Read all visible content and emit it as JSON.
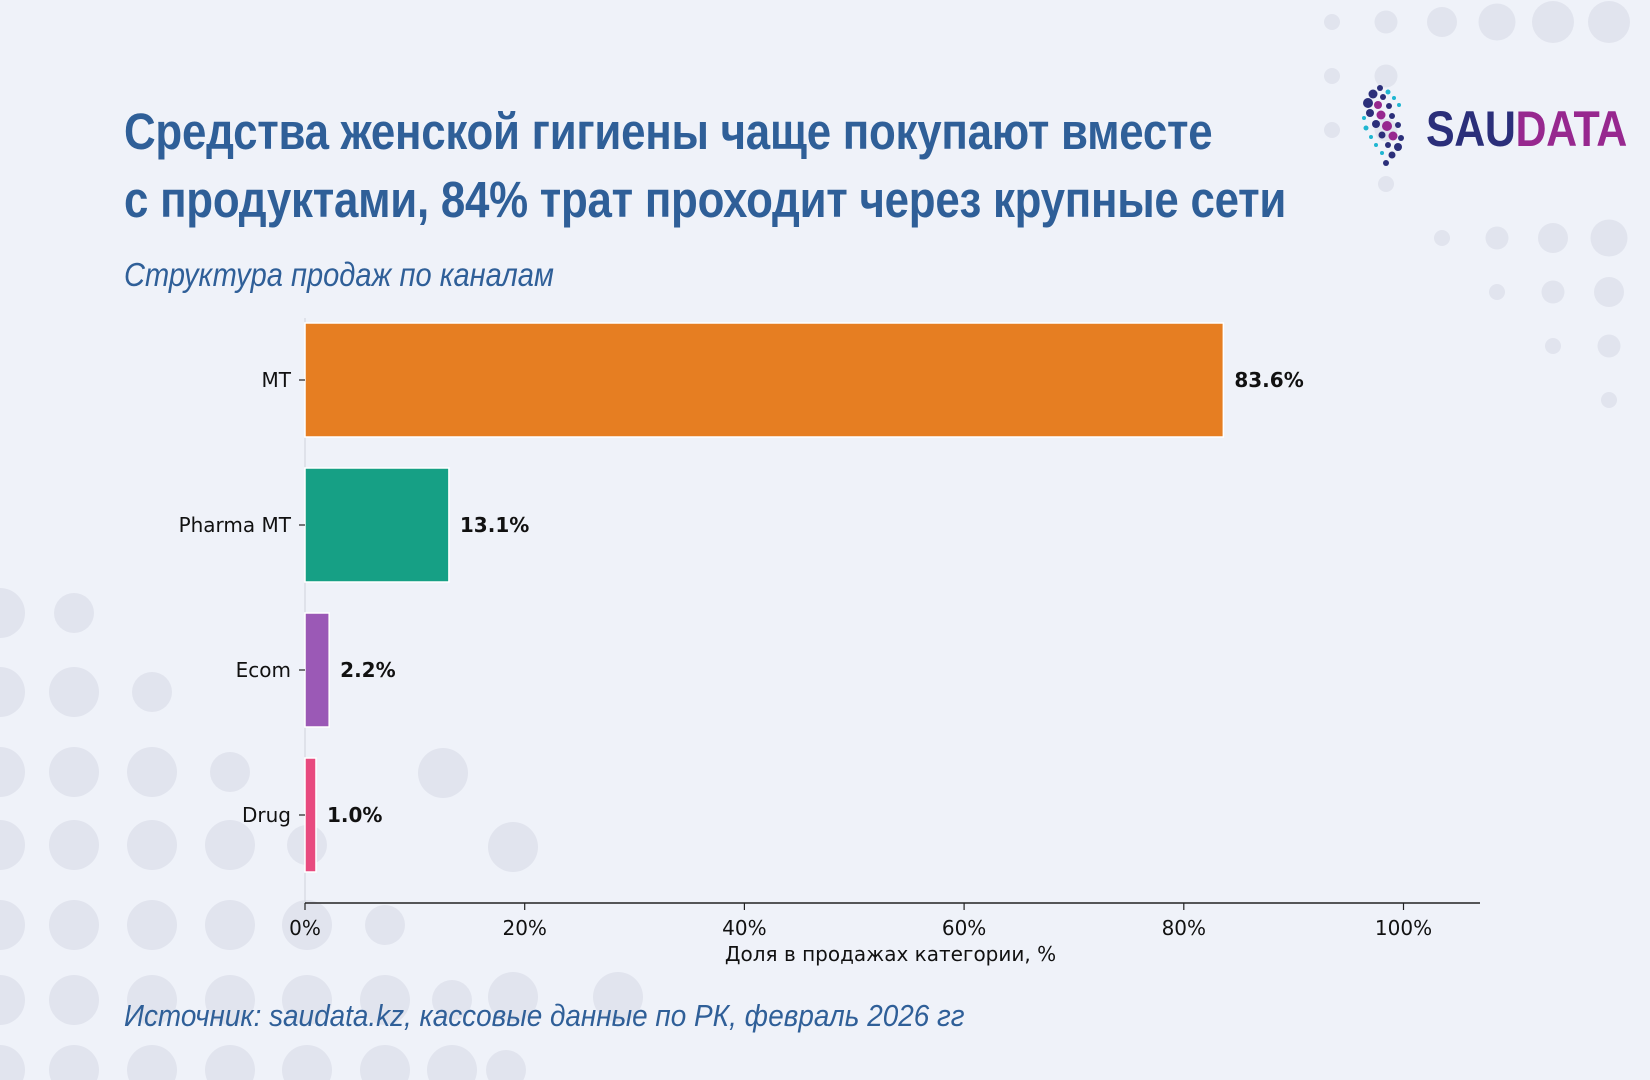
{
  "title_lines": [
    "Средства женской гигиены чаще покупают вместе",
    "с продуктами, 84% трат проходит через крупные сети"
  ],
  "subtitle": "Структура продаж по каналам",
  "source": "Источник: saudata.kz, кассовые данные по РК,  февраль 2026 гг",
  "logo": {
    "part1": "SAU",
    "part2": "DATA"
  },
  "colors": {
    "text_blue": "#2f5f98",
    "logo_navy": "#2b2f7a",
    "logo_purple": "#97288f",
    "bg": "#eff2f9",
    "bg_dots": "#e1e4ee"
  },
  "chart_data": {
    "type": "bar",
    "orientation": "horizontal",
    "categories": [
      "MT",
      "Pharma MT",
      "Ecom",
      "Drug"
    ],
    "values": [
      83.6,
      13.1,
      2.2,
      1.0
    ],
    "value_labels": [
      "83.6%",
      "13.1%",
      "2.2%",
      "1.0%"
    ],
    "colors": [
      "#e67e22",
      "#16a085",
      "#9b59b6",
      "#e84a7f"
    ],
    "xlabel": "Доля в продажах категории, %",
    "ylabel": "",
    "xlim": [
      0,
      107
    ],
    "xticks": [
      0,
      20,
      40,
      60,
      80,
      100
    ],
    "xtick_labels": [
      "0%",
      "20%",
      "40%",
      "60%",
      "80%",
      "100%"
    ],
    "grid": false,
    "legend": "none"
  }
}
